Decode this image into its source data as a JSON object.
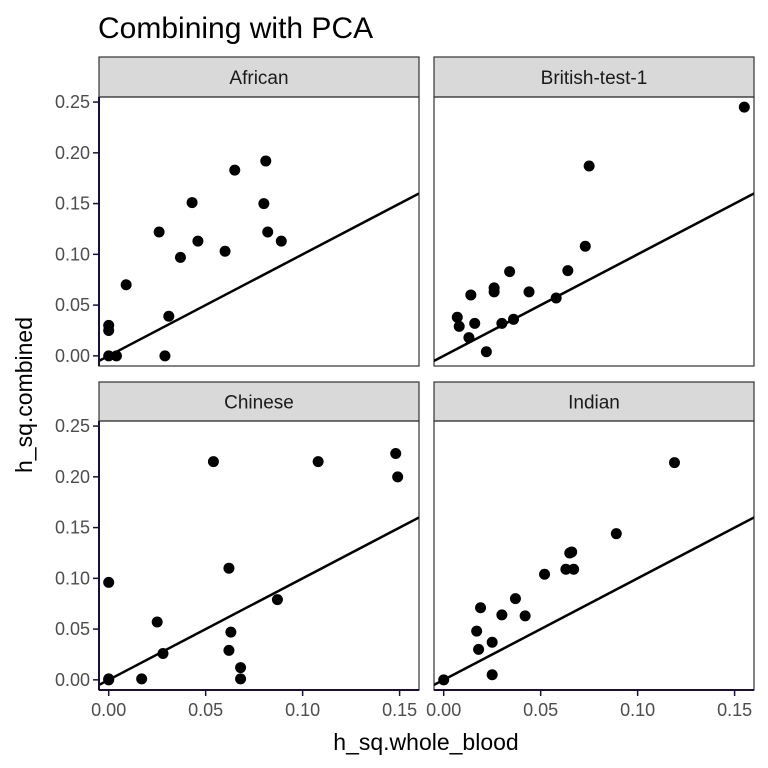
{
  "chart_data": {
    "type": "scatter",
    "title": "Combining with PCA",
    "xlabel": "h_sq.whole_blood",
    "ylabel": "h_sq.combined",
    "xlim": [
      -0.005,
      0.16
    ],
    "ylim": [
      -0.01,
      0.255
    ],
    "x_ticks": [
      0.0,
      0.05,
      0.1,
      0.15
    ],
    "x_tick_labels": [
      "0.00",
      "0.05",
      "0.10",
      "0.15"
    ],
    "y_ticks": [
      0.0,
      0.05,
      0.1,
      0.15,
      0.2,
      0.25
    ],
    "y_tick_labels": [
      "0.00",
      "0.05",
      "0.10",
      "0.15",
      "0.20",
      "0.25"
    ],
    "reference_line": {
      "slope": 1,
      "intercept": 0
    },
    "grid": false,
    "facets": [
      {
        "label": "African",
        "points": [
          [
            0.0,
            0.0
          ],
          [
            0.0,
            0.025
          ],
          [
            0.0,
            0.03
          ],
          [
            0.004,
            0.0
          ],
          [
            0.009,
            0.07
          ],
          [
            0.026,
            0.122
          ],
          [
            0.029,
            0.0
          ],
          [
            0.031,
            0.039
          ],
          [
            0.037,
            0.097
          ],
          [
            0.043,
            0.151
          ],
          [
            0.046,
            0.113
          ],
          [
            0.06,
            0.103
          ],
          [
            0.065,
            0.183
          ],
          [
            0.08,
            0.15
          ],
          [
            0.081,
            0.192
          ],
          [
            0.082,
            0.122
          ],
          [
            0.089,
            0.113
          ]
        ]
      },
      {
        "label": "British-test-1",
        "points": [
          [
            0.007,
            0.038
          ],
          [
            0.008,
            0.029
          ],
          [
            0.013,
            0.018
          ],
          [
            0.014,
            0.06
          ],
          [
            0.016,
            0.032
          ],
          [
            0.022,
            0.004
          ],
          [
            0.026,
            0.063
          ],
          [
            0.026,
            0.067
          ],
          [
            0.03,
            0.032
          ],
          [
            0.034,
            0.083
          ],
          [
            0.036,
            0.036
          ],
          [
            0.044,
            0.063
          ],
          [
            0.058,
            0.057
          ],
          [
            0.064,
            0.084
          ],
          [
            0.073,
            0.108
          ],
          [
            0.075,
            0.187
          ],
          [
            0.155,
            0.245
          ]
        ]
      },
      {
        "label": "Chinese",
        "points": [
          [
            0.0,
            0.0
          ],
          [
            0.0,
            0.001
          ],
          [
            0.0,
            0.096
          ],
          [
            0.017,
            0.001
          ],
          [
            0.025,
            0.057
          ],
          [
            0.028,
            0.026
          ],
          [
            0.054,
            0.215
          ],
          [
            0.062,
            0.029
          ],
          [
            0.062,
            0.11
          ],
          [
            0.063,
            0.047
          ],
          [
            0.068,
            0.012
          ],
          [
            0.068,
            0.001
          ],
          [
            0.087,
            0.079
          ],
          [
            0.108,
            0.215
          ],
          [
            0.148,
            0.223
          ],
          [
            0.149,
            0.2
          ]
        ]
      },
      {
        "label": "Indian",
        "points": [
          [
            0.0,
            0.0
          ],
          [
            0.017,
            0.048
          ],
          [
            0.018,
            0.03
          ],
          [
            0.019,
            0.071
          ],
          [
            0.025,
            0.005
          ],
          [
            0.025,
            0.037
          ],
          [
            0.03,
            0.064
          ],
          [
            0.037,
            0.08
          ],
          [
            0.042,
            0.063
          ],
          [
            0.052,
            0.104
          ],
          [
            0.063,
            0.109
          ],
          [
            0.065,
            0.125
          ],
          [
            0.066,
            0.126
          ],
          [
            0.067,
            0.109
          ],
          [
            0.089,
            0.144
          ],
          [
            0.119,
            0.214
          ]
        ]
      }
    ]
  },
  "colors": {
    "point": "#000000",
    "line": "#000000",
    "strip_fill": "#d9d9d9",
    "panel_border": "#333333",
    "axis_line": "#1a0f3a"
  }
}
